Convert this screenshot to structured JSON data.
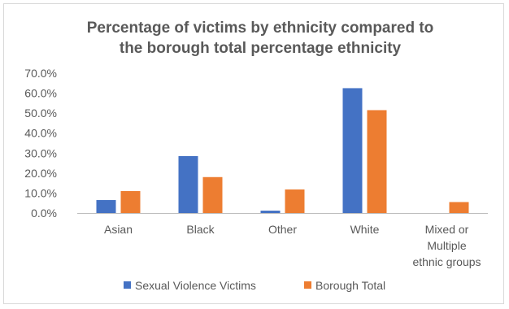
{
  "chart_data": {
    "type": "bar",
    "title_lines": [
      "Percentage of victims by ethnicity compared to",
      "the borough total percentage ethnicity"
    ],
    "categories": [
      [
        "Asian"
      ],
      [
        "Black"
      ],
      [
        "Other"
      ],
      [
        "White"
      ],
      [
        "Mixed or",
        "Multiple",
        "ethnic groups"
      ]
    ],
    "series": [
      {
        "name": "Sexual Violence Victims",
        "color": "#4472c4",
        "values": [
          6.5,
          28.5,
          1.2,
          62.5,
          0
        ]
      },
      {
        "name": "Borough Total",
        "color": "#ed7d31",
        "values": [
          11.0,
          18.0,
          11.8,
          51.5,
          5.5
        ]
      }
    ],
    "y_ticks": [
      "0.0%",
      "10.0%",
      "20.0%",
      "30.0%",
      "40.0%",
      "50.0%",
      "60.0%",
      "70.0%"
    ],
    "ylim": [
      0,
      70
    ],
    "grid": false,
    "legend_position": "bottom"
  }
}
